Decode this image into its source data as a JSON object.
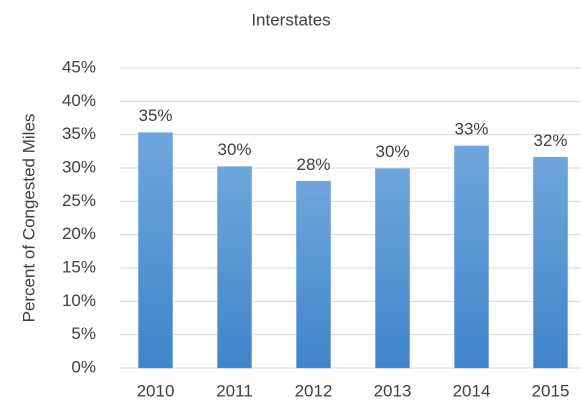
{
  "chart_data": {
    "type": "bar",
    "title": "Interstates",
    "y_label": "Percent of Congested Miles",
    "categories": [
      "2010",
      "2011",
      "2012",
      "2013",
      "2014",
      "2015"
    ],
    "values": [
      35.3,
      30.2,
      28,
      29.9,
      33.3,
      31.6
    ],
    "value_labels": [
      "35%",
      "30%",
      "28%",
      "30%",
      "33%",
      "32%"
    ],
    "color": "#5b9bd5",
    "ylim": [
      0,
      45
    ],
    "yticks": [
      {
        "value": 0,
        "label": "0%"
      },
      {
        "value": 5,
        "label": "5%"
      },
      {
        "value": 10,
        "label": "10%"
      },
      {
        "value": 15,
        "label": "15%"
      },
      {
        "value": 20,
        "label": "20%"
      },
      {
        "value": 25,
        "label": "25%"
      },
      {
        "value": 30,
        "label": "30%"
      },
      {
        "value": 35,
        "label": "35%"
      },
      {
        "value": 40,
        "label": "40%"
      },
      {
        "value": 45,
        "label": "45%"
      }
    ],
    "grid": true
  }
}
